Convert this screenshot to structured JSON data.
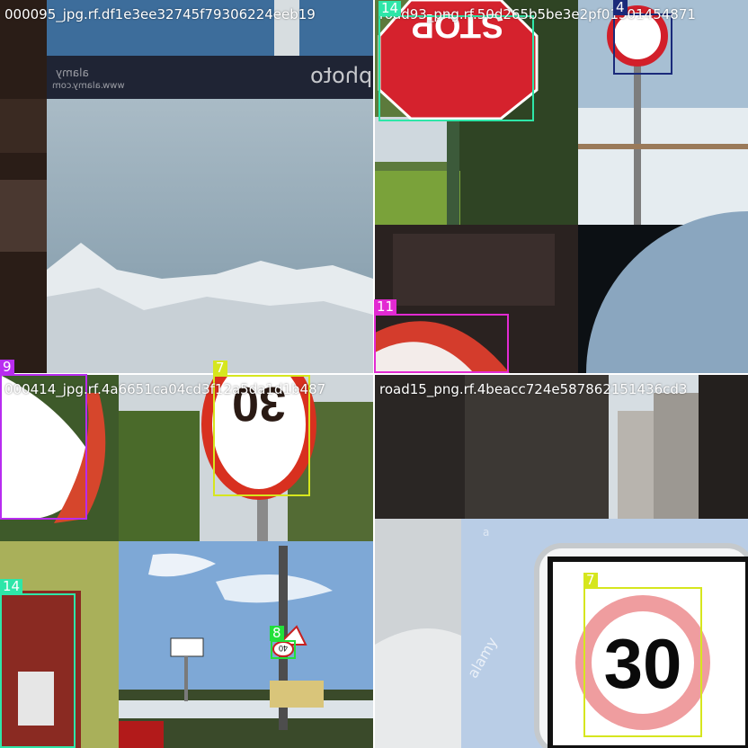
{
  "tiles": [
    {
      "name": "000095_jpg.rf.df1e3ee32745f79306224eeb19",
      "watermark": "photo",
      "watermark_small_1": "alamy",
      "watermark_small_2": "www.alamy.com"
    },
    {
      "name": "road93_png.rf.50d265b5be3e2pf01301454871"
    },
    {
      "name": "000414_jpg.rf.4a6651ca04cd3f12a5da1d1b487"
    },
    {
      "name": "road15_png.rf.4beacc724e587862151436cd3",
      "sign_text": "30",
      "watermark": "alamy",
      "watermark_letter": "a"
    }
  ],
  "detections": [
    {
      "label": "14",
      "color": "#2ee6a8"
    },
    {
      "label": "4",
      "color": "#1a2a7a"
    },
    {
      "label": "11",
      "color": "#e22ad2"
    },
    {
      "label": "9",
      "color": "#b82cf0"
    },
    {
      "label": "7",
      "color": "#d6e61e"
    },
    {
      "label": "8",
      "color": "#22e03a"
    },
    {
      "label": "14",
      "color": "#2ee6a8"
    },
    {
      "label": "7",
      "color": "#d6e61e"
    }
  ],
  "signs": {
    "thirty": "30",
    "forty": "40",
    "stop": "STOP"
  }
}
